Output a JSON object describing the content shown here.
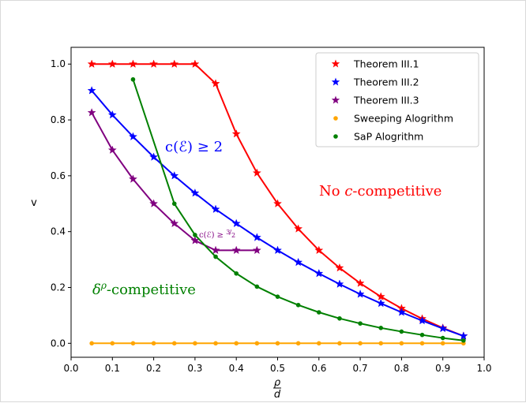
{
  "chart_data": {
    "type": "line",
    "xlabel_num": "ρ",
    "xlabel_den": "d",
    "ylabel": "v",
    "xlim": [
      0.0,
      1.0
    ],
    "ylim": [
      -0.05,
      1.06
    ],
    "xticks": [
      "0.0",
      "0.1",
      "0.2",
      "0.3",
      "0.4",
      "0.5",
      "0.6",
      "0.7",
      "0.8",
      "0.9",
      "1.0"
    ],
    "yticks": [
      "0.0",
      "0.2",
      "0.4",
      "0.6",
      "0.8",
      "1.0"
    ],
    "legend_position": "top-right",
    "series": [
      {
        "name": "Theorem III.1",
        "color": "#ff0000",
        "marker": "star",
        "x": [
          0.05,
          0.1,
          0.15,
          0.2,
          0.25,
          0.3,
          0.35,
          0.4,
          0.45,
          0.5,
          0.55,
          0.6,
          0.65,
          0.7,
          0.75,
          0.8,
          0.85,
          0.9,
          0.95
        ],
        "y": [
          1.0,
          1.0,
          1.0,
          1.0,
          1.0,
          1.0,
          0.93,
          0.75,
          0.61,
          0.5,
          0.41,
          0.333,
          0.27,
          0.215,
          0.167,
          0.125,
          0.088,
          0.055,
          0.026
        ]
      },
      {
        "name": "Theorem III.2",
        "color": "#0000ff",
        "marker": "star",
        "x": [
          0.05,
          0.1,
          0.15,
          0.2,
          0.25,
          0.3,
          0.35,
          0.4,
          0.45,
          0.5,
          0.55,
          0.6,
          0.65,
          0.7,
          0.75,
          0.8,
          0.85,
          0.9,
          0.95
        ],
        "y": [
          0.905,
          0.818,
          0.74,
          0.667,
          0.6,
          0.538,
          0.48,
          0.429,
          0.379,
          0.333,
          0.29,
          0.25,
          0.212,
          0.176,
          0.143,
          0.111,
          0.081,
          0.053,
          0.026
        ]
      },
      {
        "name": "Theorem III.3",
        "color": "#800080",
        "marker": "star",
        "x": [
          0.05,
          0.1,
          0.15,
          0.2,
          0.25,
          0.3,
          0.35,
          0.4,
          0.45
        ],
        "y": [
          0.826,
          0.692,
          0.588,
          0.5,
          0.429,
          0.368,
          0.333,
          0.333,
          0.333
        ]
      },
      {
        "name": "Sweeping Alogrithm",
        "color": "#ffa500",
        "marker": "dot",
        "x": [
          0.05,
          0.1,
          0.15,
          0.2,
          0.25,
          0.3,
          0.35,
          0.4,
          0.45,
          0.5,
          0.55,
          0.6,
          0.65,
          0.7,
          0.75,
          0.8,
          0.85,
          0.9,
          0.95
        ],
        "y": [
          0,
          0,
          0,
          0,
          0,
          0,
          0,
          0,
          0,
          0,
          0,
          0,
          0,
          0,
          0,
          0,
          0,
          0,
          0
        ]
      },
      {
        "name": "SaP Alogrithm",
        "color": "#008000",
        "marker": "dot",
        "x": [
          0.15,
          0.25,
          0.3,
          0.35,
          0.4,
          0.45,
          0.5,
          0.55,
          0.6,
          0.65,
          0.7,
          0.75,
          0.8,
          0.85,
          0.9,
          0.95
        ],
        "y": [
          0.945,
          0.5,
          0.388,
          0.31,
          0.25,
          0.203,
          0.167,
          0.137,
          0.111,
          0.089,
          0.071,
          0.055,
          0.042,
          0.03,
          0.019,
          0.01
        ]
      }
    ],
    "annotations": [
      {
        "id": "c2",
        "text": "c(ℰ) ≥ 2",
        "color": "#0000ff"
      },
      {
        "id": "ccomp",
        "text": "No c-competitive",
        "color": "#ff0000"
      },
      {
        "id": "delta",
        "text": "δ^ρ-competitive",
        "color": "#008000"
      },
      {
        "id": "c32",
        "text": "c(ℰ) ≥ 3/2",
        "color": "#800080"
      }
    ]
  }
}
